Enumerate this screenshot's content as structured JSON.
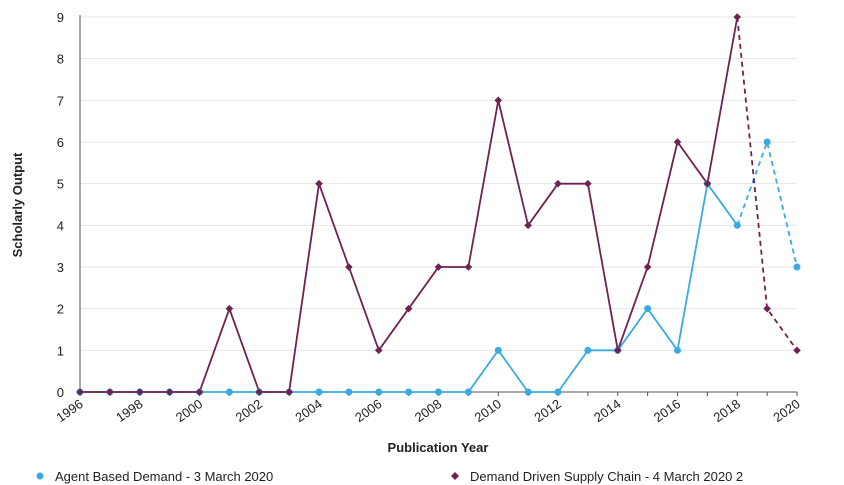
{
  "chart_data": {
    "type": "line",
    "title": "",
    "xlabel": "Publication Year",
    "ylabel": "Scholarly Output",
    "xlim": [
      1996,
      2020
    ],
    "ylim": [
      0,
      9
    ],
    "x_ticks": [
      "1996",
      "1998",
      "2000",
      "2002",
      "2004",
      "2006",
      "2008",
      "2010",
      "2012",
      "2014",
      "2016",
      "2018",
      "2020"
    ],
    "y_ticks": [
      "0",
      "1",
      "2",
      "3",
      "4",
      "5",
      "6",
      "7",
      "8",
      "9"
    ],
    "grid": "horizontal",
    "legend_position": "bottom",
    "x": [
      1996,
      1997,
      1998,
      1999,
      2000,
      2001,
      2002,
      2003,
      2004,
      2005,
      2006,
      2007,
      2008,
      2009,
      2010,
      2011,
      2012,
      2013,
      2014,
      2015,
      2016,
      2017,
      2018,
      2019,
      2020
    ],
    "series": [
      {
        "name": "Agent Based Demand - 3 March 2020",
        "color": "#3aabe0",
        "marker": "circle",
        "dashed_from": 2018,
        "values": [
          0,
          0,
          0,
          0,
          0,
          0,
          0,
          0,
          0,
          0,
          0,
          0,
          0,
          0,
          1,
          0,
          0,
          1,
          1,
          2,
          1,
          5,
          4,
          6,
          3
        ]
      },
      {
        "name": "Demand Driven Supply Chain - 4 March 2020 2",
        "color": "#6e2252",
        "marker": "diamond",
        "dashed_from": 2018,
        "values": [
          0,
          0,
          0,
          0,
          0,
          2,
          0,
          0,
          5,
          3,
          1,
          2,
          3,
          3,
          7,
          4,
          5,
          5,
          1,
          3,
          6,
          5,
          9,
          2,
          1
        ]
      }
    ]
  }
}
